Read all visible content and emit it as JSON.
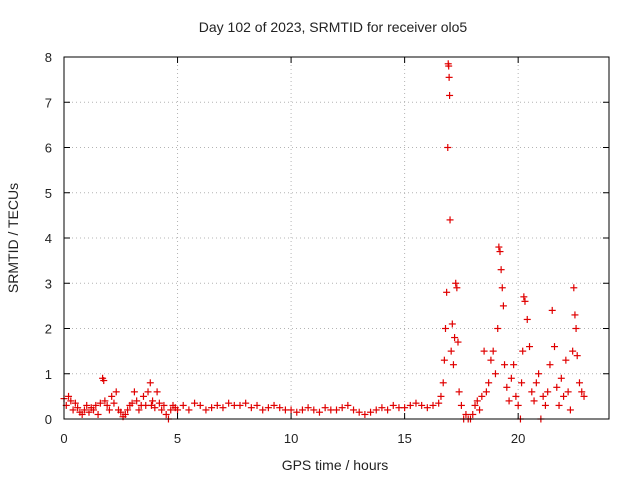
{
  "chart_data": {
    "type": "scatter",
    "title": "Day 102 of 2023, SRMTID for receiver olo5",
    "xlabel": "GPS time / hours",
    "ylabel": "SRMTID / TECUs",
    "xlim": [
      0,
      24
    ],
    "ylim": [
      0,
      8
    ],
    "xticks": [
      0,
      5,
      10,
      15,
      20
    ],
    "yticks": [
      0,
      1,
      2,
      3,
      4,
      5,
      6,
      7,
      8
    ],
    "grid": true,
    "marker": "+",
    "series": [
      {
        "name": "SRMTID",
        "color": "#e00000",
        "x": [
          0.0,
          0.1,
          0.2,
          0.3,
          0.4,
          0.5,
          0.6,
          0.7,
          0.8,
          0.9,
          1.0,
          1.1,
          1.2,
          1.3,
          1.4,
          1.5,
          1.6,
          1.7,
          1.75,
          1.8,
          1.9,
          2.0,
          2.1,
          2.2,
          2.3,
          2.4,
          2.5,
          2.6,
          2.7,
          2.8,
          2.9,
          3.0,
          3.1,
          3.2,
          3.3,
          3.4,
          3.5,
          3.6,
          3.7,
          3.8,
          3.85,
          3.9,
          4.0,
          4.1,
          4.2,
          4.3,
          4.4,
          4.5,
          4.6,
          4.7,
          4.8,
          4.9,
          5.0,
          5.25,
          5.5,
          5.75,
          6.0,
          6.25,
          6.5,
          6.75,
          7.0,
          7.25,
          7.5,
          7.75,
          8.0,
          8.25,
          8.5,
          8.75,
          9.0,
          9.25,
          9.5,
          9.75,
          10.0,
          10.25,
          10.5,
          10.75,
          11.0,
          11.25,
          11.5,
          11.75,
          12.0,
          12.25,
          12.5,
          12.75,
          13.0,
          13.25,
          13.5,
          13.75,
          14.0,
          14.25,
          14.5,
          14.75,
          15.0,
          15.25,
          15.5,
          15.75,
          16.0,
          16.25,
          16.5,
          16.6,
          16.7,
          16.75,
          16.8,
          16.85,
          16.9,
          16.92,
          16.94,
          16.96,
          16.98,
          17.0,
          17.05,
          17.1,
          17.15,
          17.2,
          17.25,
          17.3,
          17.35,
          17.4,
          17.5,
          17.6,
          17.7,
          17.8,
          17.9,
          18.0,
          18.1,
          18.2,
          18.3,
          18.4,
          18.5,
          18.6,
          18.7,
          18.8,
          18.9,
          19.0,
          19.1,
          19.15,
          19.2,
          19.25,
          19.3,
          19.35,
          19.4,
          19.5,
          19.6,
          19.7,
          19.8,
          19.9,
          20.0,
          20.1,
          20.15,
          20.2,
          20.25,
          20.3,
          20.4,
          20.5,
          20.6,
          20.7,
          20.8,
          20.9,
          21.0,
          21.1,
          21.2,
          21.3,
          21.4,
          21.5,
          21.6,
          21.7,
          21.8,
          21.9,
          22.0,
          22.1,
          22.2,
          22.3,
          22.4,
          22.45,
          22.5,
          22.55,
          22.6,
          22.7,
          22.8,
          22.9
        ],
        "y": [
          0.45,
          0.3,
          0.5,
          0.4,
          0.2,
          0.35,
          0.25,
          0.15,
          0.1,
          0.2,
          0.3,
          0.15,
          0.25,
          0.2,
          0.3,
          0.1,
          0.35,
          0.9,
          0.85,
          0.4,
          0.3,
          0.2,
          0.5,
          0.35,
          0.6,
          0.2,
          0.15,
          0.05,
          0.1,
          0.2,
          0.3,
          0.35,
          0.6,
          0.4,
          0.2,
          0.3,
          0.5,
          0.3,
          0.6,
          0.8,
          0.3,
          0.4,
          0.25,
          0.6,
          0.35,
          0.2,
          0.3,
          0.1,
          0.0,
          0.2,
          0.3,
          0.25,
          0.2,
          0.3,
          0.2,
          0.35,
          0.3,
          0.2,
          0.25,
          0.3,
          0.25,
          0.35,
          0.3,
          0.3,
          0.35,
          0.25,
          0.3,
          0.2,
          0.25,
          0.3,
          0.25,
          0.2,
          0.2,
          0.15,
          0.2,
          0.25,
          0.2,
          0.15,
          0.25,
          0.2,
          0.2,
          0.25,
          0.3,
          0.2,
          0.15,
          0.1,
          0.15,
          0.2,
          0.25,
          0.2,
          0.3,
          0.25,
          0.25,
          0.3,
          0.35,
          0.3,
          0.25,
          0.3,
          0.35,
          0.5,
          0.8,
          1.3,
          2.0,
          2.8,
          6.0,
          7.85,
          7.8,
          7.55,
          7.15,
          4.4,
          1.5,
          2.1,
          1.2,
          1.8,
          3.0,
          2.9,
          1.7,
          0.6,
          0.3,
          0.0,
          0.1,
          0.0,
          0.0,
          0.1,
          0.3,
          0.4,
          0.2,
          0.5,
          1.5,
          0.6,
          0.8,
          1.3,
          1.5,
          1.0,
          2.0,
          3.8,
          3.7,
          3.3,
          2.9,
          2.5,
          1.2,
          0.7,
          0.4,
          0.9,
          1.2,
          0.5,
          0.3,
          0.0,
          0.8,
          1.5,
          2.7,
          2.6,
          2.2,
          1.6,
          0.6,
          0.4,
          0.8,
          1.0,
          0.0,
          0.5,
          0.3,
          0.6,
          1.2,
          2.4,
          1.6,
          0.7,
          0.3,
          0.9,
          0.5,
          1.3,
          0.6,
          0.2,
          1.5,
          2.9,
          2.3,
          2.0,
          1.4,
          0.8,
          0.6,
          0.5
        ]
      }
    ]
  }
}
